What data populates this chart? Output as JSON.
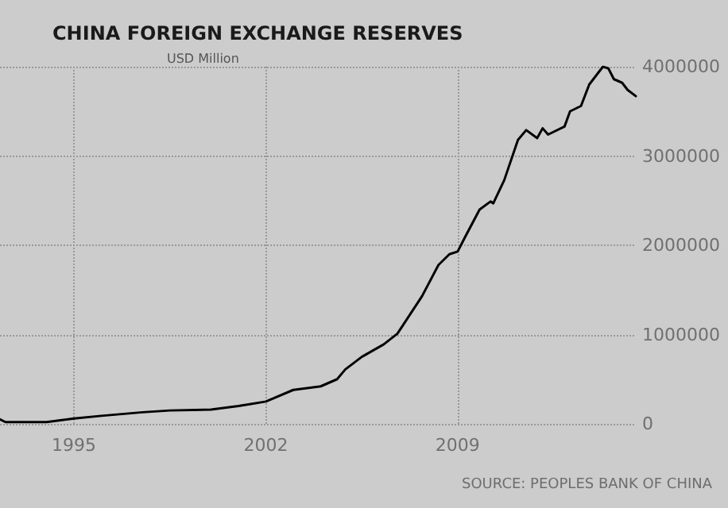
{
  "chart_data": {
    "type": "line",
    "title": "CHINA FOREIGN EXCHANGE RESERVES",
    "subtitle": "USD Million",
    "annotations": [
      "SOURCE: PEOPLES BANK OF CHINA"
    ],
    "x": [
      1992.3,
      1992.5,
      1993,
      1994,
      1995,
      1996,
      1997.5,
      1998.5,
      2000,
      2001,
      2002,
      2003,
      2004,
      2004.6,
      2004.9,
      2005.5,
      2006.3,
      2006.8,
      2007.7,
      2008.3,
      2008.7,
      2009.0,
      2009.25,
      2009.8,
      2010.2,
      2010.3,
      2010.7,
      2011.2,
      2011.5,
      2011.9,
      2012.1,
      2012.3,
      2012.9,
      2013.1,
      2013.5,
      2013.8,
      2014.3,
      2014.5,
      2014.7,
      2015.0,
      2015.2,
      2015.5
    ],
    "series": [
      {
        "color": "#000000",
        "values": [
          50000,
          20000,
          20000,
          20000,
          60000,
          90000,
          130000,
          150000,
          160000,
          200000,
          250000,
          380000,
          420000,
          500000,
          610000,
          750000,
          890000,
          1010000,
          1430000,
          1780000,
          1900000,
          1930000,
          2080000,
          2400000,
          2490000,
          2470000,
          2730000,
          3180000,
          3290000,
          3200000,
          3310000,
          3240000,
          3330000,
          3500000,
          3560000,
          3800000,
          4000000,
          3980000,
          3860000,
          3820000,
          3740000,
          3670000
        ]
      }
    ],
    "xlim": [
      1992.3,
      2015.5
    ],
    "xticks": [
      1995,
      2002,
      2009
    ],
    "ylim": [
      0,
      4000000
    ],
    "yticks": [
      0,
      1000000,
      2000000,
      3000000,
      4000000
    ],
    "grid": true,
    "line_style": "solid",
    "marker": "none"
  }
}
